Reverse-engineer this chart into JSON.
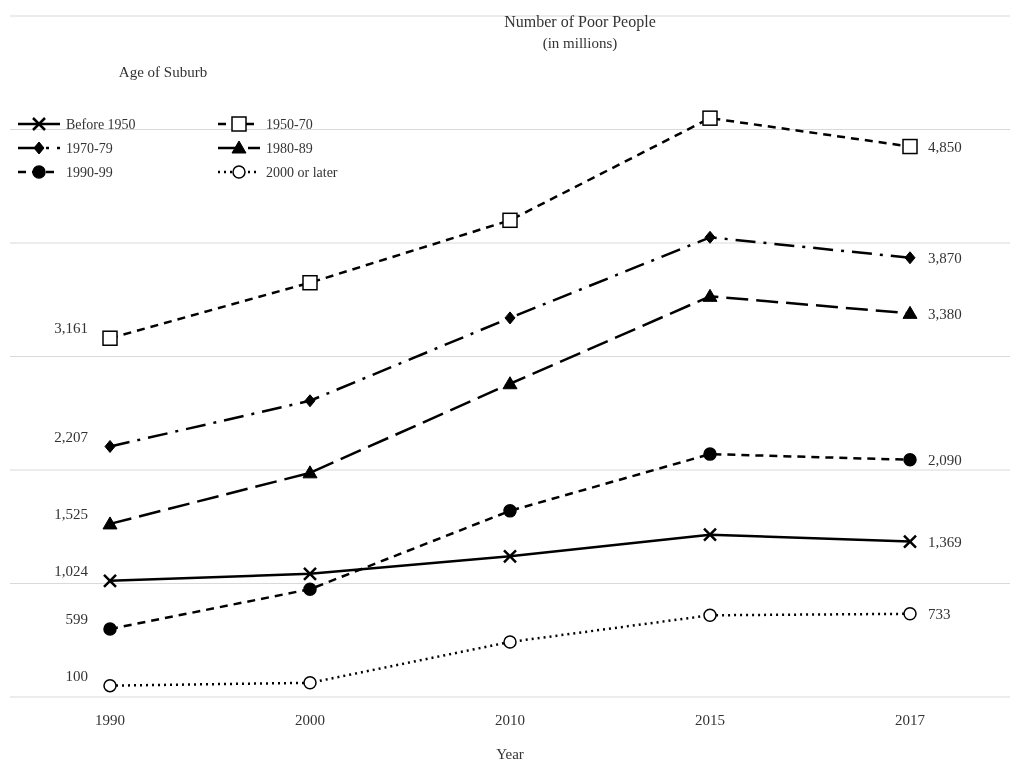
{
  "chart_data": {
    "type": "line",
    "title": "Number of Poor People",
    "subtitle": "(in millions)",
    "xlabel": "Year",
    "legend_title": "Age of Suburb",
    "legend": "top left",
    "grid": "y",
    "tick_labels": "x",
    "categories": [
      "1990",
      "2000",
      "2010",
      "2015",
      "2017"
    ],
    "ylim": [
      0,
      6000
    ],
    "yticks": [
      {
        "value": 0,
        "label": null
      },
      {
        "value": 1000,
        "label": null
      },
      {
        "value": 2000,
        "label": null
      },
      {
        "value": 3000,
        "label": null
      },
      {
        "value": 4000,
        "label": null
      },
      {
        "value": 5000,
        "label": null
      },
      {
        "value": 6000,
        "label": null
      }
    ],
    "series": [
      {
        "name": "Before 1950",
        "color": "#000000",
        "line_style": "solid",
        "marker": "cross",
        "values": [
          1024,
          1085,
          1240,
          1430,
          1369
        ],
        "value_labels": [
          "1,024",
          null,
          null,
          null,
          "1,369"
        ]
      },
      {
        "name": "1950-70",
        "color": "#000000",
        "line_style": "dashed",
        "marker": "square",
        "values": [
          3161,
          3650,
          4200,
          5100,
          4850
        ],
        "value_labels": [
          "3,161",
          null,
          null,
          null,
          "4,850"
        ]
      },
      {
        "name": "1970-79",
        "color": "#000000",
        "line_style": "dashdot",
        "marker": "diamond",
        "values": [
          2207,
          2610,
          3340,
          4050,
          3870
        ],
        "value_labels": [
          "2,207",
          null,
          null,
          null,
          "3,870"
        ]
      },
      {
        "name": "1980-89",
        "color": "#000000",
        "line_style": "longdash",
        "marker": "triangle",
        "values": [
          1525,
          1975,
          2760,
          3530,
          3380
        ],
        "value_labels": [
          "1,525",
          null,
          null,
          null,
          "3,380"
        ]
      },
      {
        "name": "1990-99",
        "color": "#000000",
        "line_style": "dashed",
        "marker": "circle",
        "values": [
          599,
          950,
          1640,
          2140,
          2090
        ],
        "value_labels": [
          "599",
          null,
          null,
          null,
          "2,090"
        ]
      },
      {
        "name": "2000 or later",
        "color": "#000000",
        "line_style": "dotted",
        "marker": "circle",
        "values": [
          100,
          125,
          485,
          720,
          733
        ],
        "value_labels": [
          "100",
          null,
          null,
          null,
          "733"
        ]
      }
    ]
  }
}
